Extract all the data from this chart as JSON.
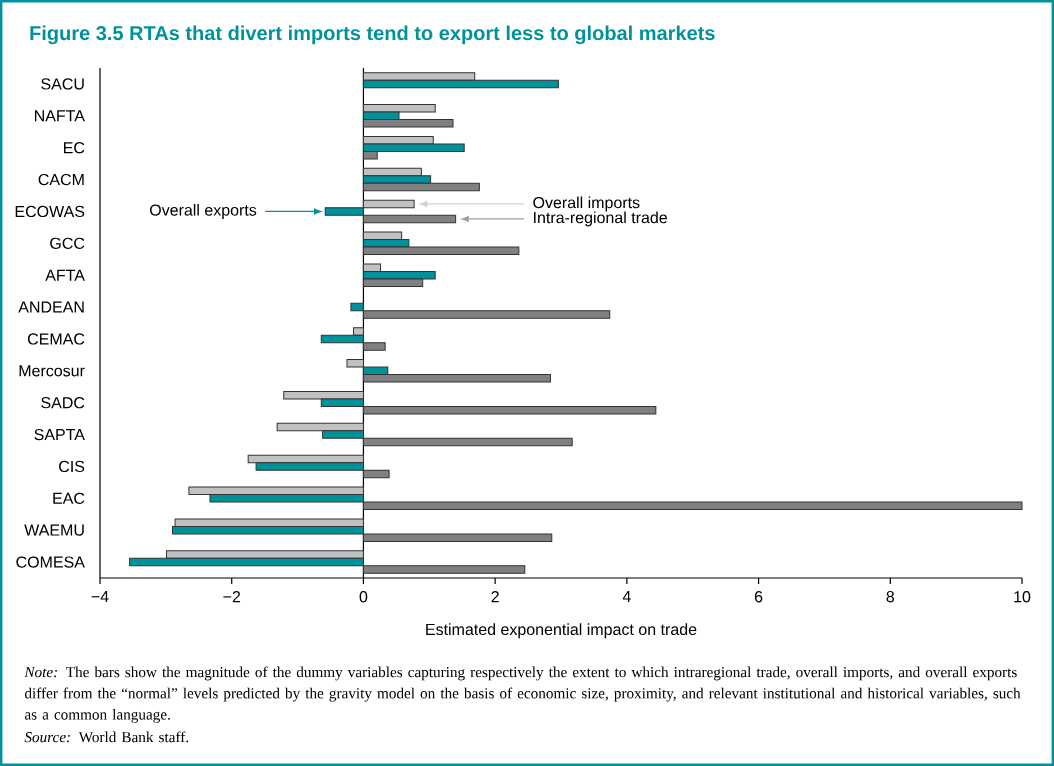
{
  "chart_data": {
    "type": "bar",
    "orientation": "horizontal",
    "title": "Figure 3.5  RTAs that divert imports tend to export less to global markets",
    "xlabel": "Estimated exponential impact on trade",
    "categories": [
      "SACU",
      "NAFTA",
      "EC",
      "CACM",
      "ECOWAS",
      "GCC",
      "AFTA",
      "ANDEAN",
      "CEMAC",
      "Mercosur",
      "SADC",
      "SAPTA",
      "CIS",
      "EAC",
      "WAEMU",
      "COMESA"
    ],
    "series": [
      {
        "name": "Overall imports",
        "color": "#c0c1c3",
        "values": [
          1.69,
          1.09,
          1.06,
          0.88,
          0.77,
          0.58,
          0.26,
          null,
          -0.15,
          -0.25,
          -1.21,
          -1.31,
          -1.75,
          -2.65,
          -2.86,
          -2.99
        ]
      },
      {
        "name": "Overall exports",
        "color": "#00929b",
        "values": [
          2.96,
          0.54,
          1.53,
          1.02,
          -0.58,
          0.69,
          1.09,
          -0.19,
          -0.64,
          0.37,
          -0.64,
          -0.62,
          -1.63,
          -2.33,
          -2.9,
          -3.55
        ]
      },
      {
        "name": "Intra-regional trade",
        "color": "#808080",
        "values": [
          null,
          1.36,
          0.21,
          1.76,
          1.4,
          2.36,
          0.9,
          3.74,
          0.33,
          2.84,
          4.44,
          3.17,
          0.39,
          10.0,
          2.86,
          2.45
        ]
      }
    ],
    "xlim": [
      -4,
      10
    ],
    "xticks": [
      {
        "value": -4,
        "label": "−4"
      },
      {
        "value": -2,
        "label": "−2"
      },
      0,
      2,
      4,
      6,
      8,
      10
    ],
    "annotations": [
      "*Note:* The bars show the magnitude of the dummy variables capturing respectively the extent to which intraregional trade, overall imports, and overall exports differ from the “normal” levels predicted by the gravity model on the basis of economic size, proximity, and relevant institutional and historical variables, such as a common language.",
      "*Source:* World Bank staff."
    ]
  }
}
